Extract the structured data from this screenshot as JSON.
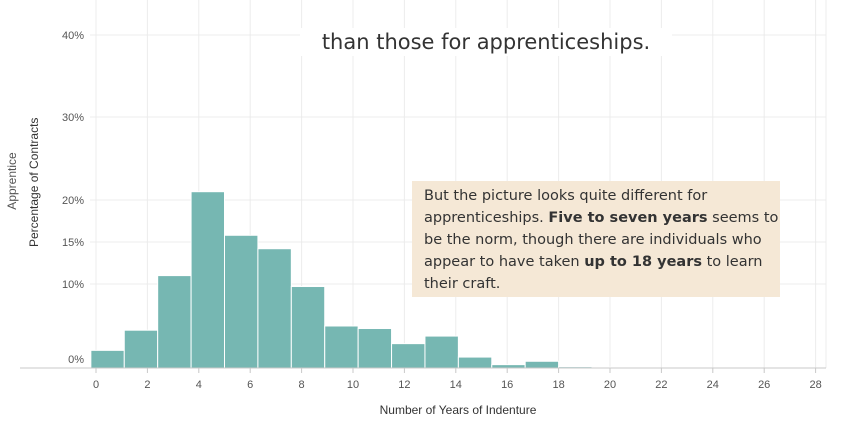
{
  "caption_top": "than those for apprenticeships.",
  "note": {
    "t1": "But the picture looks quite different for apprenticeships. ",
    "b1": "Five to seven years",
    "t2": " seems to be the norm, though there are individuals who appear to have taken ",
    "b2": "up to 18 years",
    "t3": " to learn their craft."
  },
  "row_label": "Apprentice",
  "colors": {
    "bar": "#76b7b2",
    "bar_stroke": "#ffffff",
    "grid": "#ececec",
    "axis": "#c8c8c8",
    "note_bg": "#f5e8d6"
  },
  "chart_data": {
    "type": "bar",
    "xlabel": "Number of Years of Indenture",
    "ylabel": "Percentage of Contracts",
    "x_ticks": [
      "0",
      "2",
      "4",
      "6",
      "8",
      "10",
      "12",
      "14",
      "16",
      "18",
      "20",
      "22",
      "24",
      "26",
      "28"
    ],
    "y_ticks": [
      "0%",
      "10%",
      "15%",
      "20%",
      "30%",
      "40%"
    ],
    "xlim": [
      -0.5,
      28.5
    ],
    "bin_width": 1.3,
    "bins": [
      {
        "start": -0.2,
        "value": 2.1
      },
      {
        "start": 1.1,
        "value": 4.5
      },
      {
        "start": 2.4,
        "value": 11.0
      },
      {
        "start": 3.7,
        "value": 21.0
      },
      {
        "start": 5.0,
        "value": 15.8
      },
      {
        "start": 6.3,
        "value": 14.2
      },
      {
        "start": 7.6,
        "value": 9.7
      },
      {
        "start": 8.9,
        "value": 5.0
      },
      {
        "start": 10.2,
        "value": 4.7
      },
      {
        "start": 11.5,
        "value": 2.9
      },
      {
        "start": 12.8,
        "value": 3.8
      },
      {
        "start": 14.1,
        "value": 1.3
      },
      {
        "start": 15.4,
        "value": 0.4
      },
      {
        "start": 16.7,
        "value": 0.8
      },
      {
        "start": 18.0,
        "value": 0.15
      },
      {
        "start": 19.3,
        "value": 0.1
      }
    ]
  }
}
